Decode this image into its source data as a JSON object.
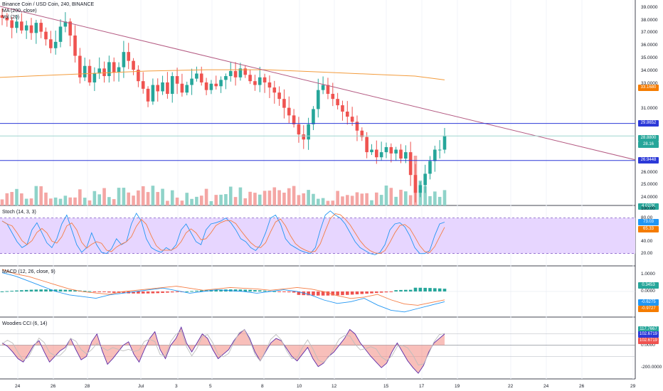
{
  "header": {
    "title": "Binance Coin / USD Coin, 240, BINANCE",
    "ma_label": "MA (200, close)",
    "vol_label": "Vol (20)"
  },
  "panes": {
    "stoch": {
      "label": "Stoch (14, 3, 3)"
    },
    "macd": {
      "label": "MACD (12, 26, close, 9)"
    },
    "cci": {
      "label": "Woodies CCI (6, 14)"
    }
  },
  "colors": {
    "up": "#26a69a",
    "down": "#ef5350",
    "ma": "#f39c3d",
    "trend": "#b45a82",
    "hline": "#2c39d8",
    "stoch_k": "#2196f3",
    "stoch_d": "#f57c43",
    "stoch_bg": "#e7d6ff",
    "macd_line": "#2196f3",
    "macd_signal": "#f57c43",
    "cci_line": "#5b2aa8"
  },
  "price_axis": {
    "ticks": [
      "39.0000",
      "38.0000",
      "37.0000",
      "36.0000",
      "35.0000",
      "34.0000",
      "33.0000",
      "31.0000",
      "28.0000",
      "26.0000",
      "25.0000",
      "24.0000"
    ],
    "badges": [
      {
        "text": "33.1680",
        "color": "#f57c00",
        "price": 32.7
      },
      {
        "text": "29.8652",
        "color": "#2c39d8",
        "price": 29.86
      },
      {
        "text": "28.8800",
        "color": "#26a69a",
        "price": 28.7
      },
      {
        "text": "28.16",
        "color": "#26a69a",
        "price": 28.2
      },
      {
        "text": "26.9448",
        "color": "#2c39d8",
        "price": 26.94
      },
      {
        "text": "4.022K",
        "color": "#26a69a",
        "price": 23.3
      }
    ]
  },
  "stoch_axis": {
    "ticks": [
      "100.00",
      "80.00",
      "40.00",
      "20.00"
    ],
    "badges": [
      {
        "text": "73.03",
        "color": "#2196f3"
      },
      {
        "text": "65.33",
        "color": "#f57c00"
      }
    ]
  },
  "macd_axis": {
    "ticks": [
      "1.0000",
      "0.0000",
      "-1.0000"
    ],
    "badges": [
      {
        "text": "0.3453",
        "color": "#26a69a"
      },
      {
        "text": "-0.6275",
        "color": "#2196f3"
      },
      {
        "text": "-0.9727",
        "color": "#f57c00"
      }
    ]
  },
  "cci_axis": {
    "ticks": [
      "0.0000",
      "-200.0000"
    ],
    "badges": [
      {
        "text": "117.7667",
        "color": "#26a69a"
      },
      {
        "text": "102.6719",
        "color": "#2c39d8"
      },
      {
        "text": "102.6719",
        "color": "#ef5350"
      }
    ]
  },
  "time_axis": {
    "labels": [
      "24",
      "26",
      "28",
      "Jul",
      "3",
      "5",
      "8",
      "10",
      "12",
      "15",
      "17",
      "19",
      "22",
      "24",
      "26",
      "29"
    ]
  },
  "chart_data": {
    "type": "candlestick",
    "title": "Binance Coin / USD Coin, 240, BINANCE",
    "price_ylim": [
      23.4,
      39.6
    ],
    "closes": [
      38.2,
      38.0,
      37.4,
      37.9,
      37.2,
      37.6,
      37.0,
      37.8,
      37.1,
      36.5,
      35.8,
      36.3,
      37.5,
      37.9,
      36.8,
      35.2,
      33.5,
      34.4,
      33.1,
      33.8,
      34.2,
      33.6,
      34.7,
      33.9,
      34.3,
      35.5,
      34.8,
      34.1,
      33.2,
      32.6,
      31.6,
      32.9,
      32.4,
      33.1,
      32.2,
      33.6,
      33.0,
      32.3,
      32.9,
      33.4,
      33.8,
      33.1,
      32.5,
      33.0,
      32.8,
      33.3,
      33.6,
      34.0,
      33.5,
      34.2,
      33.7,
      33.2,
      32.9,
      33.5,
      33.1,
      32.7,
      32.3,
      31.8,
      31.1,
      30.5,
      29.8,
      29.0,
      28.6,
      29.8,
      31.0,
      32.5,
      32.9,
      32.2,
      31.8,
      31.3,
      30.8,
      30.4,
      30.0,
      29.3,
      28.8,
      27.6,
      27.8,
      27.2,
      27.6,
      28.0,
      27.5,
      27.8,
      27.1,
      27.6,
      25.8,
      24.4,
      25.0,
      25.9,
      26.9,
      27.8,
      27.8,
      28.9
    ],
    "ma200": [
      33.5,
      33.6,
      33.7,
      33.8,
      33.9,
      34.0,
      34.05,
      34.1,
      34.1,
      34.1,
      34.0,
      33.9,
      33.8,
      33.7,
      33.6,
      33.3
    ],
    "trendline": [
      {
        "x": "start",
        "y": 39.1
      },
      {
        "x": "end",
        "y": 27.0
      }
    ],
    "hlines": [
      29.8652,
      26.9448,
      28.88
    ],
    "stoch_range": [
      0,
      100
    ],
    "macd_range": [
      -1.5,
      1.5
    ],
    "cci_range": [
      -300,
      250
    ]
  }
}
